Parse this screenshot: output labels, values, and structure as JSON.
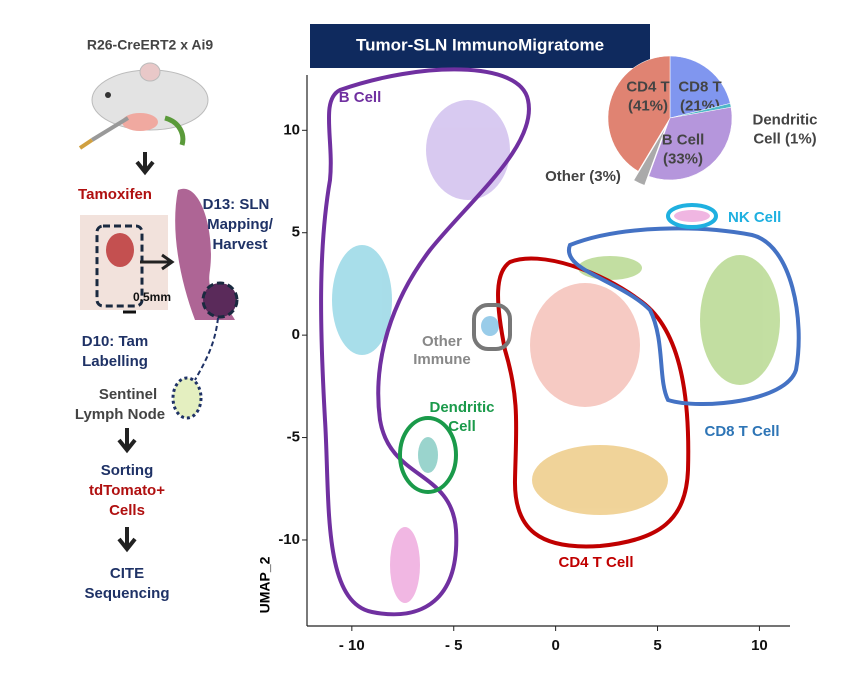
{
  "workflow": {
    "strain": "R26-CreERT2 x Ai9",
    "tamoxifen": "Tamoxifen",
    "harvest": [
      "D13: SLN",
      "Mapping/",
      "Harvest"
    ],
    "scale_bar": "0.5mm",
    "labelling": [
      "D10: Tam",
      "Labelling"
    ],
    "node": [
      "Sentinel",
      "Lymph Node"
    ],
    "sorting": [
      "Sorting",
      "tdTomato+",
      "Cells"
    ],
    "sequencing": [
      "CITE",
      "Sequencing"
    ]
  },
  "chart_data": [
    {
      "type": "scatter",
      "title": "Tumor-SLN ImmunoMigratome",
      "y_label": "UMAP_2",
      "xlim": [
        -12.2,
        11.5
      ],
      "ylim": [
        -14.2,
        12.7
      ],
      "xticks": [
        {
          "value": -10,
          "label": "- 10"
        },
        {
          "value": -5,
          "label": "- 5"
        },
        0,
        5,
        10
      ],
      "yticks": [
        -10,
        -5,
        0,
        5,
        10
      ],
      "cluster_labels": {
        "b_cell": "B Cell",
        "other": [
          "Other",
          "Immune"
        ],
        "dendritic": [
          "Dendritic",
          "Cell"
        ],
        "cd4": "CD4 T Cell",
        "cd8": "CD8 T Cell",
        "nk": "NK Cell"
      }
    },
    {
      "type": "pie",
      "labels": [
        [
          "CD8 T",
          "(21%)"
        ],
        [
          "Dendritic",
          "Cell (1%)"
        ],
        [
          "B Cell",
          "(33%)"
        ],
        [
          "Other (3%)"
        ],
        [
          "CD4 T",
          "(41%)"
        ]
      ],
      "values": [
        21,
        1,
        33,
        3,
        41
      ],
      "colors": [
        "#8096ef",
        "#4fb8c8",
        "#b596dc",
        "#aaaaaa",
        "#e08372"
      ]
    }
  ]
}
